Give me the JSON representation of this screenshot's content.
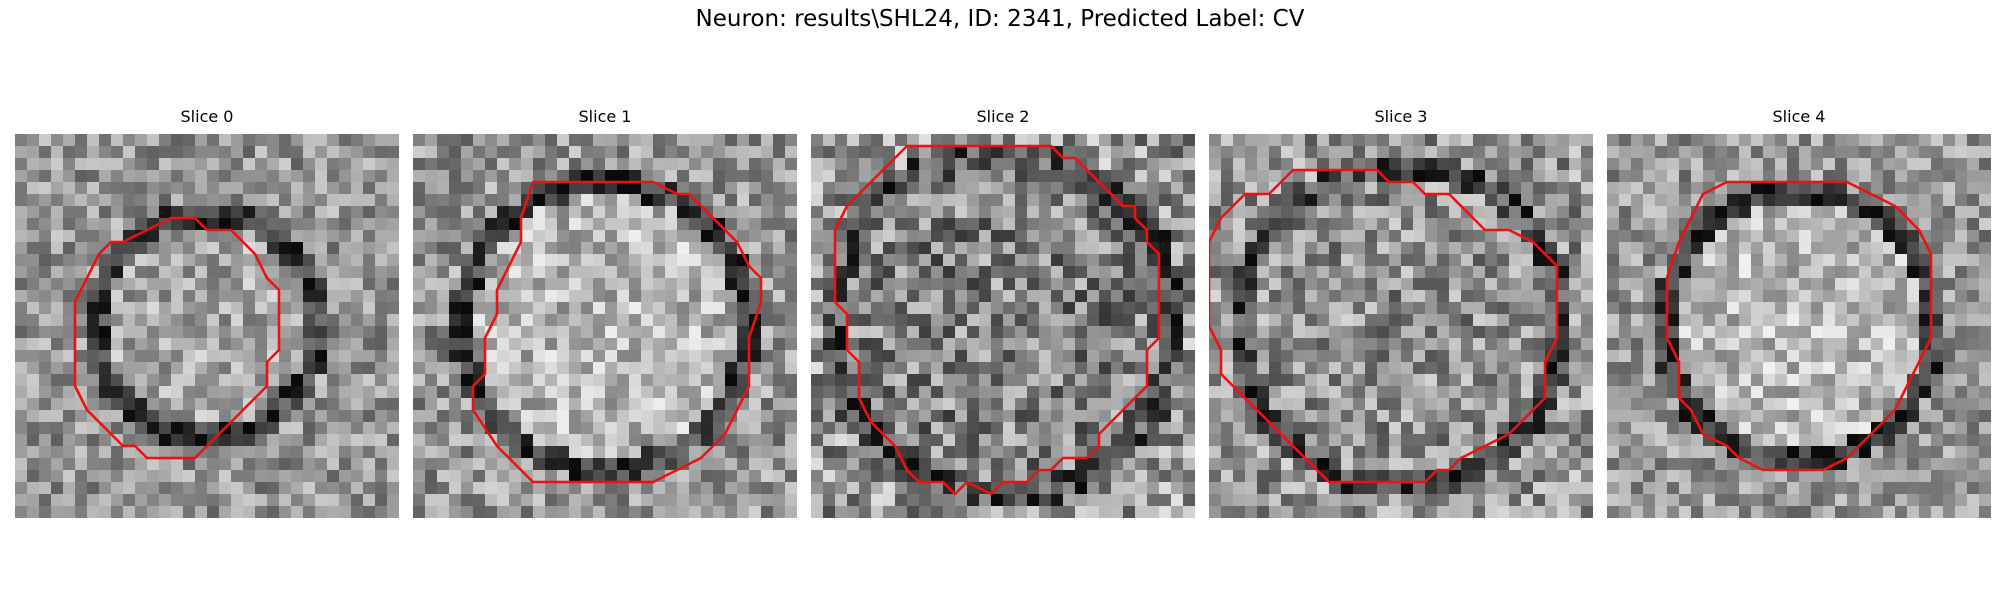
{
  "figure": {
    "title": "Neuron: results\\SHL24, ID: 2341, Predicted Label: CV",
    "contour_color": "#ee1111",
    "colormap": "gray"
  },
  "slices": [
    {
      "label": "Slice 0",
      "contour": [
        [
          13,
          7
        ],
        [
          15,
          7
        ],
        [
          16,
          8
        ],
        [
          18,
          8
        ],
        [
          20,
          10
        ],
        [
          21,
          12
        ],
        [
          22,
          13
        ],
        [
          22,
          18
        ],
        [
          21,
          19
        ],
        [
          21,
          21
        ],
        [
          20,
          22
        ],
        [
          18,
          24
        ],
        [
          16,
          26
        ],
        [
          15,
          27
        ],
        [
          11,
          27
        ],
        [
          10,
          26
        ],
        [
          9,
          26
        ],
        [
          7,
          24
        ],
        [
          6,
          23
        ],
        [
          5,
          21
        ],
        [
          5,
          14
        ],
        [
          6,
          12
        ],
        [
          7,
          10
        ],
        [
          8,
          9
        ],
        [
          9,
          9
        ],
        [
          11,
          8
        ]
      ]
    },
    {
      "label": "Slice 1",
      "contour": [
        [
          10,
          4
        ],
        [
          20,
          4
        ],
        [
          22,
          5
        ],
        [
          23,
          5
        ],
        [
          25,
          7
        ],
        [
          27,
          9
        ],
        [
          28,
          11
        ],
        [
          29,
          12
        ],
        [
          29,
          14
        ],
        [
          28,
          17
        ],
        [
          28,
          21
        ],
        [
          27,
          23
        ],
        [
          26,
          25
        ],
        [
          24,
          27
        ],
        [
          22,
          28
        ],
        [
          20,
          29
        ],
        [
          10,
          29
        ],
        [
          9,
          28
        ],
        [
          7,
          26
        ],
        [
          5,
          23
        ],
        [
          5,
          21
        ],
        [
          6,
          20
        ],
        [
          6,
          17
        ],
        [
          7,
          15
        ],
        [
          7,
          13
        ],
        [
          8,
          11
        ],
        [
          9,
          9
        ],
        [
          9,
          7
        ]
      ]
    },
    {
      "label": "Slice 2",
      "contour": [
        [
          8,
          1
        ],
        [
          20,
          1
        ],
        [
          21,
          2
        ],
        [
          22,
          2
        ],
        [
          23,
          3
        ],
        [
          24,
          4
        ],
        [
          25,
          5
        ],
        [
          26,
          6
        ],
        [
          27,
          6
        ],
        [
          27,
          7
        ],
        [
          28,
          8
        ],
        [
          28,
          9
        ],
        [
          29,
          10
        ],
        [
          29,
          17
        ],
        [
          28,
          18
        ],
        [
          28,
          21
        ],
        [
          27,
          22
        ],
        [
          26,
          23
        ],
        [
          25,
          24
        ],
        [
          24,
          25
        ],
        [
          24,
          26
        ],
        [
          23,
          27
        ],
        [
          21,
          27
        ],
        [
          20,
          28
        ],
        [
          19,
          28
        ],
        [
          18,
          29
        ],
        [
          16,
          29
        ],
        [
          15,
          30
        ],
        [
          13,
          29
        ],
        [
          12,
          30
        ],
        [
          11,
          29
        ],
        [
          9,
          29
        ],
        [
          8,
          28
        ],
        [
          7,
          26
        ],
        [
          5,
          24
        ],
        [
          4,
          22
        ],
        [
          4,
          19
        ],
        [
          3,
          18
        ],
        [
          3,
          15
        ],
        [
          2,
          14
        ],
        [
          2,
          12
        ],
        [
          2,
          8
        ],
        [
          3,
          6
        ],
        [
          5,
          4
        ],
        [
          6,
          3
        ],
        [
          7,
          2
        ]
      ]
    },
    {
      "label": "Slice 3",
      "contour": [
        [
          7,
          3
        ],
        [
          14,
          3
        ],
        [
          15,
          4
        ],
        [
          17,
          4
        ],
        [
          18,
          5
        ],
        [
          20,
          5
        ],
        [
          21,
          6
        ],
        [
          22,
          7
        ],
        [
          23,
          8
        ],
        [
          25,
          8
        ],
        [
          27,
          9
        ],
        [
          29,
          11
        ],
        [
          29,
          17
        ],
        [
          28,
          19
        ],
        [
          28,
          22
        ],
        [
          26,
          24
        ],
        [
          25,
          25
        ],
        [
          23,
          26
        ],
        [
          21,
          27
        ],
        [
          20,
          28
        ],
        [
          19,
          28
        ],
        [
          18,
          29
        ],
        [
          10,
          29
        ],
        [
          8,
          27
        ],
        [
          7,
          26
        ],
        [
          6,
          25
        ],
        [
          4,
          23
        ],
        [
          3,
          22
        ],
        [
          2,
          21
        ],
        [
          1,
          20
        ],
        [
          1,
          18
        ],
        [
          0,
          16
        ],
        [
          0,
          9
        ],
        [
          1,
          7
        ],
        [
          2,
          6
        ],
        [
          3,
          5
        ],
        [
          5,
          5
        ],
        [
          6,
          4
        ]
      ]
    },
    {
      "label": "Slice 4",
      "contour": [
        [
          10,
          4
        ],
        [
          20,
          4
        ],
        [
          22,
          5
        ],
        [
          24,
          6
        ],
        [
          26,
          8
        ],
        [
          27,
          10
        ],
        [
          27,
          17
        ],
        [
          26,
          19
        ],
        [
          25,
          21
        ],
        [
          24,
          23
        ],
        [
          23,
          24
        ],
        [
          22,
          25
        ],
        [
          20,
          27
        ],
        [
          18,
          28
        ],
        [
          13,
          28
        ],
        [
          11,
          27
        ],
        [
          10,
          26
        ],
        [
          8,
          25
        ],
        [
          7,
          23
        ],
        [
          6,
          22
        ],
        [
          6,
          19
        ],
        [
          5,
          17
        ],
        [
          5,
          12
        ],
        [
          6,
          9
        ],
        [
          7,
          7
        ],
        [
          8,
          5
        ]
      ]
    }
  ]
}
